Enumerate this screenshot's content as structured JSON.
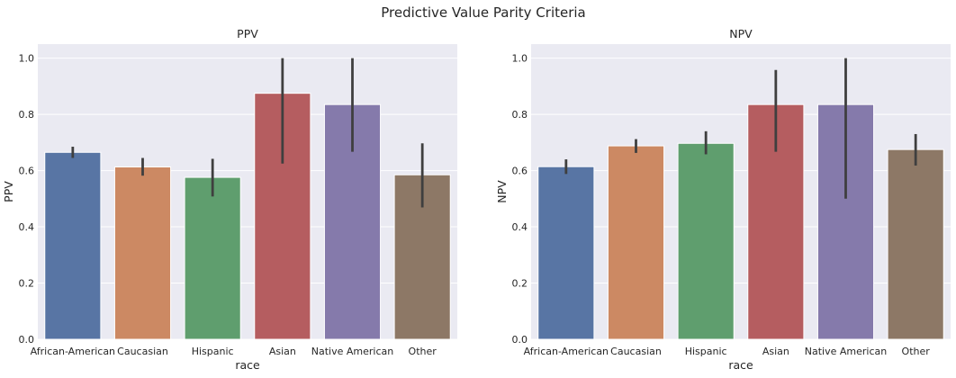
{
  "title": "Predictive Value Parity Criteria",
  "chart_data": [
    {
      "type": "bar",
      "title": "PPV",
      "xlabel": "race",
      "ylabel": "PPV",
      "ylim": [
        0,
        1.05
      ],
      "yticks": [
        "0.0",
        "0.2",
        "0.4",
        "0.6",
        "0.8",
        "1.0"
      ],
      "grid": true,
      "categories": [
        "African-American",
        "Caucasian",
        "Hispanic",
        "Asian",
        "Native American",
        "Other"
      ],
      "values": [
        0.665,
        0.613,
        0.576,
        0.875,
        0.835,
        0.585
      ],
      "error_low": [
        0.645,
        0.582,
        0.508,
        0.625,
        0.667,
        0.469
      ],
      "error_high": [
        0.685,
        0.645,
        0.642,
        1.0,
        1.0,
        0.697
      ],
      "colors": [
        "#5875a4",
        "#cc8963",
        "#5f9e6e",
        "#b55d60",
        "#857aab",
        "#8d7866"
      ]
    },
    {
      "type": "bar",
      "title": "NPV",
      "xlabel": "race",
      "ylabel": "NPV",
      "ylim": [
        0,
        1.05
      ],
      "yticks": [
        "0.0",
        "0.2",
        "0.4",
        "0.6",
        "0.8",
        "1.0"
      ],
      "grid": true,
      "categories": [
        "African-American",
        "Caucasian",
        "Hispanic",
        "Asian",
        "Native American",
        "Other"
      ],
      "values": [
        0.614,
        0.688,
        0.697,
        0.835,
        0.835,
        0.675
      ],
      "error_low": [
        0.588,
        0.663,
        0.658,
        0.667,
        0.5,
        0.618
      ],
      "error_high": [
        0.64,
        0.712,
        0.74,
        0.958,
        1.0,
        0.73
      ],
      "colors": [
        "#5875a4",
        "#cc8963",
        "#5f9e6e",
        "#b55d60",
        "#857aab",
        "#8d7866"
      ]
    }
  ]
}
